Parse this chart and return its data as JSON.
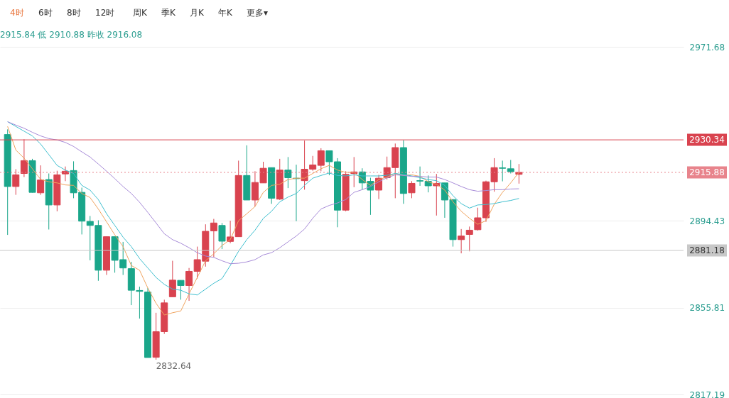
{
  "chart_data": {
    "type": "candlestick",
    "categories": [
      null,
      null,
      null,
      null,
      null,
      null,
      null,
      null,
      null,
      null,
      null,
      null,
      null,
      null,
      null,
      null,
      null,
      null,
      null,
      null,
      null,
      null,
      null,
      null,
      null,
      null,
      null,
      null,
      null,
      null,
      null,
      null,
      null,
      null,
      null,
      null,
      null,
      null,
      null,
      null,
      null,
      null,
      null,
      null,
      null,
      null,
      null,
      null,
      null,
      null,
      null,
      null,
      null,
      null,
      null,
      null,
      null,
      null,
      null,
      null,
      null,
      null,
      null
    ],
    "ohlc": [
      [
        2932.7,
        2935.0,
        2888.1,
        2909.6
      ],
      [
        2909.6,
        2917.3,
        2905.9,
        2914.8
      ],
      [
        2915.4,
        2930.6,
        2913.8,
        2921.1
      ],
      [
        2921.1,
        2921.9,
        2906.9,
        2907.0
      ],
      [
        2906.8,
        2919.0,
        2905.9,
        2912.5
      ],
      [
        2912.7,
        2915.4,
        2890.5,
        2901.4
      ],
      [
        2901.4,
        2916.6,
        2898.6,
        2914.8
      ],
      [
        2915.2,
        2918.5,
        2912.0,
        2916.4
      ],
      [
        2916.7,
        2920.8,
        2904.4,
        2906.8
      ],
      [
        2907.0,
        2909.1,
        2888.3,
        2894.2
      ],
      [
        2894.1,
        2896.5,
        2876.8,
        2892.3
      ],
      [
        2892.3,
        2894.6,
        2867.7,
        2872.4
      ],
      [
        2872.4,
        2887.3,
        2870.3,
        2887.3
      ],
      [
        2887.3,
        2887.3,
        2871.3,
        2876.8
      ],
      [
        2877.1,
        2885.0,
        2870.3,
        2873.4
      ],
      [
        2873.1,
        2876.1,
        2856.9,
        2863.5
      ],
      [
        2863.4,
        2865.1,
        2850.9,
        2863.0
      ],
      [
        2862.7,
        2864.5,
        2833.6,
        2833.6
      ],
      [
        2833.7,
        2853.5,
        2832.64,
        2845.1
      ],
      [
        2845.1,
        2859.3,
        2844.1,
        2857.9
      ],
      [
        2860.6,
        2876.6,
        2860.6,
        2868.0
      ],
      [
        2867.9,
        2867.9,
        2859.3,
        2865.6
      ],
      [
        2865.6,
        2873.4,
        2858.8,
        2871.9
      ],
      [
        2871.9,
        2882.9,
        2868.7,
        2877.1
      ],
      [
        2876.4,
        2892.8,
        2874.0,
        2889.7
      ],
      [
        2889.9,
        2895.2,
        2878.2,
        2893.4
      ],
      [
        2892.3,
        2893.4,
        2881.8,
        2885.3
      ],
      [
        2885.2,
        2894.4,
        2884.4,
        2887.2
      ],
      [
        2887.3,
        2921.1,
        2887.3,
        2914.5
      ],
      [
        2914.5,
        2927.9,
        2903.6,
        2903.6
      ],
      [
        2903.6,
        2916.4,
        2900.7,
        2911.4
      ],
      [
        2911.2,
        2920.6,
        2911.2,
        2917.7
      ],
      [
        2918.0,
        2918.0,
        2901.9,
        2904.4
      ],
      [
        2904.0,
        2921.9,
        2903.6,
        2916.9
      ],
      [
        2916.9,
        2922.7,
        2908.9,
        2913.5
      ],
      [
        2913.3,
        2919.3,
        2894.2,
        2913.1
      ],
      [
        2912.2,
        2930.0,
        2908.2,
        2917.3
      ],
      [
        2917.3,
        2923.2,
        2916.6,
        2919.2
      ],
      [
        2919.0,
        2926.6,
        2916.4,
        2925.5
      ],
      [
        2925.5,
        2925.5,
        2914.6,
        2920.6
      ],
      [
        2920.6,
        2922.2,
        2891.5,
        2899.1
      ],
      [
        2899.1,
        2916.4,
        2898.6,
        2915.0
      ],
      [
        2915.4,
        2922.7,
        2909.3,
        2916.1
      ],
      [
        2916.1,
        2917.7,
        2908.2,
        2911.2
      ],
      [
        2911.9,
        2913.5,
        2897.0,
        2908.0
      ],
      [
        2908.0,
        2914.8,
        2904.0,
        2913.3
      ],
      [
        2913.5,
        2922.9,
        2912.7,
        2918.0
      ],
      [
        2918.0,
        2928.7,
        2904.4,
        2926.9
      ],
      [
        2926.9,
        2930.2,
        2901.9,
        2906.5
      ],
      [
        2906.8,
        2912.0,
        2904.4,
        2911.0
      ],
      [
        2912.2,
        2918.5,
        2909.9,
        2912.0
      ],
      [
        2911.9,
        2914.5,
        2907.0,
        2909.9
      ],
      [
        2909.9,
        2915.2,
        2896.7,
        2911.0
      ],
      [
        2911.2,
        2911.2,
        2895.7,
        2903.6
      ],
      [
        2903.8,
        2903.8,
        2882.9,
        2886.0
      ],
      [
        2886.0,
        2890.7,
        2879.9,
        2887.6
      ],
      [
        2888.3,
        2891.8,
        2880.8,
        2890.2
      ],
      [
        2890.4,
        2900.2,
        2890.0,
        2895.7
      ],
      [
        2895.7,
        2912.2,
        2893.9,
        2911.7
      ],
      [
        2911.7,
        2922.2,
        2907.3,
        2918.0
      ],
      [
        2917.9,
        2921.1,
        2911.9,
        2917.7
      ],
      [
        2917.5,
        2921.4,
        2915.4,
        2916.2
      ],
      [
        2915.0,
        2919.6,
        2910.88,
        2915.88
      ]
    ],
    "series": [
      {
        "type": "line",
        "color": "#f0a35e",
        "values": [
          2936.3,
          2925.8,
          2922.2,
          2917.5,
          2912.8,
          2911.7,
          2911.2,
          2910.3,
          2910.1,
          2906.5,
          2904.7,
          2899.6,
          2893.9,
          2888.1,
          2882.9,
          2874.5,
          2872.4,
          2864.5,
          2857.7,
          2852.5,
          2853.5,
          2854.3,
          2861.9,
          2869.2,
          2876.6,
          2879.7,
          2883.4,
          2886.0,
          2894.4,
          2897.5,
          2900.7,
          2907.0,
          2910.1,
          2910.6,
          2912.7,
          2913.3,
          2913.3,
          2915.4,
          2917.5,
          2919.0,
          2916.9,
          2915.9,
          2915.9,
          2912.7,
          2910.1,
          2912.7,
          2913.8,
          2915.4,
          2914.5,
          2914.8,
          2914.1,
          2911.7,
          2910.6,
          2908.0,
          2902.8,
          2898.6,
          2895.5,
          2892.8,
          2894.4,
          2901.7,
          2907.0,
          2911.2,
          2915.9
        ]
      },
      {
        "type": "line",
        "color": "#3fbfcf",
        "values": [
          2938.4,
          2936.3,
          2934.2,
          2932.1,
          2928.5,
          2923.8,
          2919.0,
          2916.9,
          2915.4,
          2910.1,
          2908.0,
          2903.8,
          2897.5,
          2892.3,
          2887.1,
          2882.9,
          2877.6,
          2873.4,
          2869.2,
          2866.1,
          2864.0,
          2863.5,
          2861.9,
          2861.4,
          2864.0,
          2866.6,
          2868.7,
          2874.5,
          2880.8,
          2886.0,
          2890.2,
          2895.4,
          2898.6,
          2902.8,
          2904.9,
          2906.5,
          2910.1,
          2913.3,
          2914.5,
          2915.6,
          2914.5,
          2914.3,
          2914.8,
          2914.3,
          2914.3,
          2914.3,
          2914.6,
          2915.4,
          2914.9,
          2914.3,
          2913.5,
          2912.7,
          2912.2,
          2910.1,
          2905.5,
          2902.0,
          2900.0,
          2901.4,
          2901.6,
          2902.0,
          2902.8,
          2903.4,
          2904.3
        ]
      },
      {
        "type": "line",
        "color": "#a78bd8",
        "values": [
          2938.4,
          2936.9,
          2935.5,
          2933.7,
          2932.1,
          2930.9,
          2930.3,
          2929.2,
          2927.4,
          2925.0,
          2922.7,
          2919.6,
          2916.4,
          2913.1,
          2909.6,
          2906.5,
          2902.6,
          2898.1,
          2893.4,
          2888.6,
          2886.0,
          2884.4,
          2882.4,
          2880.2,
          2878.7,
          2878.1,
          2876.6,
          2875.3,
          2875.5,
          2876.1,
          2877.1,
          2879.2,
          2880.2,
          2882.4,
          2885.0,
          2887.6,
          2890.7,
          2895.5,
          2899.6,
          2901.2,
          2902.3,
          2903.8,
          2907.0,
          2908.2,
          2909.6,
          2911.7,
          2913.5,
          2914.8,
          2914.5,
          2914.1,
          2914.1,
          2913.8,
          2913.8,
          2912.7,
          2911.2,
          2909.6,
          2908.2,
          2907.5,
          2907.8,
          2908.2,
          2908.2,
          2908.5,
          2908.6
        ]
      }
    ],
    "ylim": [
      2817.19,
      2971.68
    ],
    "yticks": [
      2971.68,
      2894.43,
      2855.81,
      2817.19
    ],
    "tick_labels": "y",
    "grid": "y",
    "ref_lines": [
      {
        "axis": "y",
        "value": 2930.34,
        "label": "2930.34",
        "color": "#d9434f",
        "line_style": "solid"
      },
      {
        "axis": "y",
        "value": 2915.88,
        "label": "2915.88",
        "color": "#e8848c",
        "line_style": "dotted"
      },
      {
        "axis": "y",
        "value": 2881.18,
        "label": "2881.18",
        "color": "#c8c8c8",
        "line_style": "solid"
      }
    ],
    "annotations": [
      "4时",
      "6时",
      "8时",
      "12时",
      "周K",
      "季K",
      "月K",
      "年K",
      "更多▾",
      "2915.84 低 2910.88 昨收 2916.08",
      "2832.64"
    ]
  }
}
